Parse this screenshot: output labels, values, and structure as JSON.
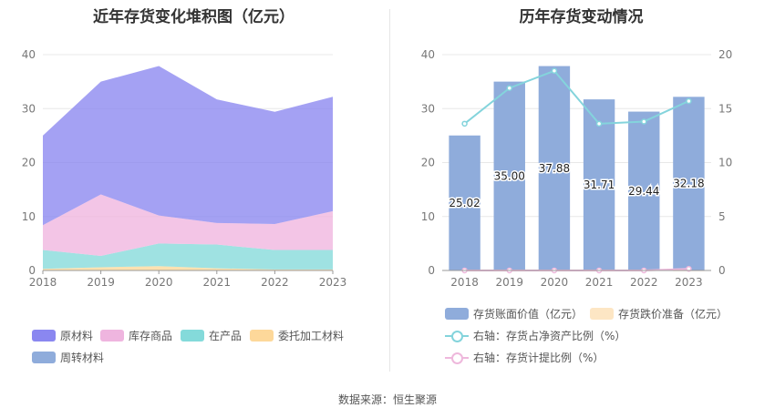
{
  "left_chart": {
    "title": "近年存货变化堆积图（亿元）",
    "legend": [
      {
        "label": "原材料",
        "color": "#8a87f0"
      },
      {
        "label": "库存商品",
        "color": "#efb5df"
      },
      {
        "label": "在产品",
        "color": "#84dada"
      },
      {
        "label": "委托加工材料",
        "color": "#fdd89a"
      },
      {
        "label": "周转材料",
        "color": "#8facdb"
      }
    ]
  },
  "right_chart": {
    "title": "历年存货变动情况",
    "legend": [
      {
        "label": "存货账面价值（亿元）",
        "color": "#8facdb"
      },
      {
        "label": "存货跌价准备（亿元）",
        "color": "#fde6c4"
      },
      {
        "label": "右轴：存货占净资产比例（%）",
        "color": "#84d4dc"
      },
      {
        "label": "右轴：存货计提比例（%）",
        "color": "#eeb8dc"
      }
    ]
  },
  "source": "数据来源：恒生聚源",
  "chart_data": [
    {
      "type": "area",
      "stacked": true,
      "title": "近年存货变化堆积图（亿元）",
      "x": [
        "2018",
        "2019",
        "2020",
        "2021",
        "2022",
        "2023"
      ],
      "ylim": [
        0,
        40
      ],
      "yticks": [
        0,
        10,
        20,
        30,
        40
      ],
      "grid": true,
      "legend_position": "bottom",
      "series": [
        {
          "name": "委托加工材料",
          "color": "#fdd89a",
          "values": [
            0.3,
            0.6,
            0.8,
            0.4,
            0.2,
            0.2
          ]
        },
        {
          "name": "在产品",
          "color": "#84dada",
          "values": [
            3.5,
            2.1,
            4.2,
            4.4,
            3.6,
            3.6
          ]
        },
        {
          "name": "库存商品",
          "color": "#efb5df",
          "values": [
            4.6,
            11.4,
            5.2,
            4.0,
            4.8,
            7.2
          ]
        },
        {
          "name": "原材料",
          "color": "#8a87f0",
          "values": [
            16.6,
            20.9,
            27.7,
            22.9,
            20.8,
            21.2
          ]
        },
        {
          "name": "周转材料",
          "color": "#8facdb",
          "values": [
            0,
            0,
            0,
            0,
            0,
            0
          ]
        }
      ]
    },
    {
      "type": "bar",
      "title": "历年存货变动情况",
      "categories": [
        "2018",
        "2019",
        "2020",
        "2021",
        "2022",
        "2023"
      ],
      "ylim": [
        0,
        40
      ],
      "yticks": [
        0,
        10,
        20,
        30,
        40
      ],
      "y2lim": [
        0,
        20
      ],
      "y2ticks": [
        0,
        5,
        10,
        15,
        20
      ],
      "grid": true,
      "legend_position": "bottom",
      "series": [
        {
          "name": "存货账面价值（亿元）",
          "type": "bar",
          "axis": "left",
          "color": "#8facdb",
          "values": [
            25.02,
            35.0,
            37.88,
            31.71,
            29.44,
            32.18
          ],
          "labels": [
            "25.02",
            "35.00",
            "37.88",
            "31.71",
            "29.44",
            "32.18"
          ]
        },
        {
          "name": "存货跌价准备（亿元）",
          "type": "bar",
          "axis": "left",
          "color": "#fde6c4",
          "values": [
            0,
            0,
            0,
            0,
            0,
            0.05
          ]
        },
        {
          "name": "右轴：存货占净资产比例（%）",
          "type": "line",
          "axis": "right",
          "color": "#84d4dc",
          "values": [
            13.6,
            16.9,
            18.5,
            13.6,
            13.8,
            15.7
          ]
        },
        {
          "name": "右轴：存货计提比例（%）",
          "type": "line",
          "axis": "right",
          "color": "#eeb8dc",
          "values": [
            0,
            0,
            0,
            0,
            0,
            0.15
          ]
        }
      ]
    }
  ]
}
